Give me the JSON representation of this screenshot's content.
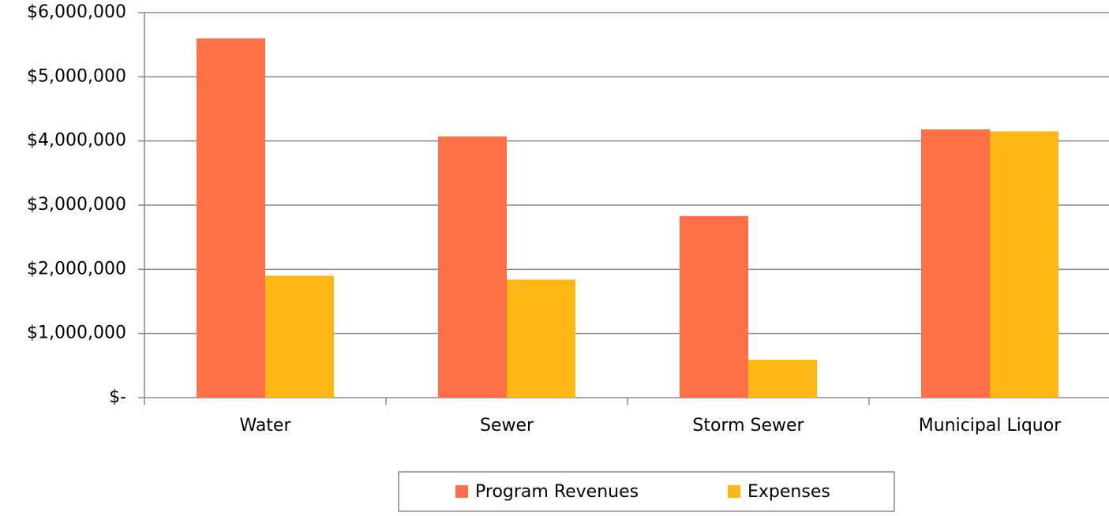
{
  "chart_data": {
    "type": "bar",
    "categories": [
      "Water",
      "Sewer",
      "Storm Sewer",
      "Municipal Liquor"
    ],
    "series": [
      {
        "name": "Program Revenues",
        "color": "#ff7048",
        "values": [
          5600000,
          4070000,
          2830000,
          4180000
        ]
      },
      {
        "name": "Expenses",
        "color": "#fdb714",
        "values": [
          1900000,
          1840000,
          590000,
          4150000
        ]
      }
    ],
    "ylim": [
      0,
      6000000
    ],
    "yticks": [
      {
        "value": 0,
        "label": "$-"
      },
      {
        "value": 1000000,
        "label": "$1,000,000"
      },
      {
        "value": 2000000,
        "label": "$2,000,000"
      },
      {
        "value": 3000000,
        "label": "$3,000,000"
      },
      {
        "value": 4000000,
        "label": "$4,000,000"
      },
      {
        "value": 5000000,
        "label": "$5,000,000"
      },
      {
        "value": 6000000,
        "label": "$6,000,000"
      }
    ],
    "grid": true,
    "legend": "bottom"
  }
}
